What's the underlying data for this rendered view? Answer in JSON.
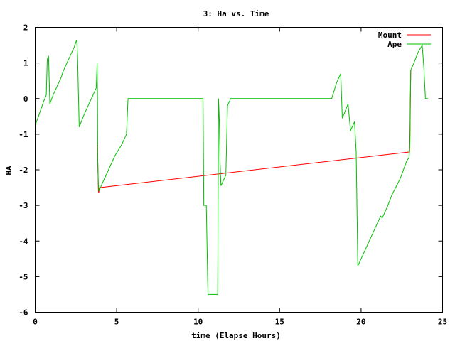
{
  "chart_data": {
    "type": "line",
    "title": "3: Ha vs. Time",
    "xlabel": "time (Elapse Hours)",
    "ylabel": "HA",
    "xlim": [
      0,
      25
    ],
    "ylim": [
      -6,
      2
    ],
    "xticks": [
      0,
      5,
      10,
      15,
      20,
      25
    ],
    "yticks": [
      -6,
      -5,
      -4,
      -3,
      -2,
      -1,
      0,
      1,
      2
    ],
    "grid": false,
    "legend_position": "top-right",
    "series": [
      {
        "name": "Mount",
        "color": "#ff0000",
        "points": [
          [
            3.82,
            -1.3
          ],
          [
            3.84,
            -1.75
          ],
          [
            3.86,
            -2.2
          ],
          [
            3.88,
            -2.6
          ],
          [
            3.9,
            -2.65
          ],
          [
            3.95,
            -2.5
          ],
          [
            22.98,
            -1.5
          ],
          [
            23.0,
            -0.9
          ],
          [
            23.02,
            -0.1
          ],
          [
            23.05,
            0.8
          ]
        ]
      },
      {
        "name": "Ape",
        "color": "#00c000",
        "points": [
          [
            0.0,
            -0.75
          ],
          [
            0.2,
            -0.5
          ],
          [
            0.5,
            -0.1
          ],
          [
            0.68,
            0.1
          ],
          [
            0.74,
            1.1
          ],
          [
            0.82,
            1.2
          ],
          [
            0.9,
            -0.15
          ],
          [
            1.1,
            0.1
          ],
          [
            1.4,
            0.4
          ],
          [
            1.6,
            0.6
          ],
          [
            1.7,
            0.75
          ],
          [
            2.0,
            1.05
          ],
          [
            2.2,
            1.25
          ],
          [
            2.4,
            1.45
          ],
          [
            2.55,
            1.65
          ],
          [
            2.6,
            1.2
          ],
          [
            2.7,
            -0.8
          ],
          [
            3.0,
            -0.45
          ],
          [
            3.3,
            -0.15
          ],
          [
            3.55,
            0.1
          ],
          [
            3.75,
            0.3
          ],
          [
            3.78,
            0.7
          ],
          [
            3.8,
            1.0
          ],
          [
            3.82,
            0.15
          ],
          [
            3.84,
            -1.75
          ],
          [
            3.87,
            -2.3
          ],
          [
            3.9,
            -2.6
          ],
          [
            4.2,
            -2.3
          ],
          [
            4.6,
            -1.9
          ],
          [
            4.9,
            -1.6
          ],
          [
            5.3,
            -1.3
          ],
          [
            5.6,
            -1.0
          ],
          [
            5.7,
            0.0
          ],
          [
            10.3,
            0.0
          ],
          [
            10.35,
            -3.0
          ],
          [
            10.5,
            -3.0
          ],
          [
            10.6,
            -5.5
          ],
          [
            11.2,
            -5.5
          ],
          [
            11.25,
            0.0
          ],
          [
            11.3,
            -0.6
          ],
          [
            11.35,
            -1.8
          ],
          [
            11.4,
            -2.45
          ],
          [
            11.6,
            -2.25
          ],
          [
            11.7,
            -2.15
          ],
          [
            11.8,
            -0.2
          ],
          [
            12.0,
            0.0
          ],
          [
            18.2,
            0.0
          ],
          [
            18.3,
            0.15
          ],
          [
            18.5,
            0.45
          ],
          [
            18.75,
            0.7
          ],
          [
            18.85,
            -0.55
          ],
          [
            19.2,
            -0.15
          ],
          [
            19.35,
            -0.9
          ],
          [
            19.6,
            -0.65
          ],
          [
            19.7,
            -1.5
          ],
          [
            19.8,
            -4.7
          ],
          [
            20.2,
            -4.3
          ],
          [
            20.6,
            -3.9
          ],
          [
            21.0,
            -3.5
          ],
          [
            21.2,
            -3.3
          ],
          [
            21.3,
            -3.35
          ],
          [
            21.6,
            -3.05
          ],
          [
            21.9,
            -2.7
          ],
          [
            22.4,
            -2.25
          ],
          [
            22.8,
            -1.75
          ],
          [
            22.95,
            -1.65
          ],
          [
            23.0,
            -1.2
          ],
          [
            23.05,
            0.8
          ],
          [
            23.2,
            0.95
          ],
          [
            23.5,
            1.3
          ],
          [
            23.75,
            1.5
          ],
          [
            23.85,
            0.9
          ],
          [
            23.95,
            0.0
          ],
          [
            24.1,
            0.0
          ]
        ]
      }
    ]
  }
}
